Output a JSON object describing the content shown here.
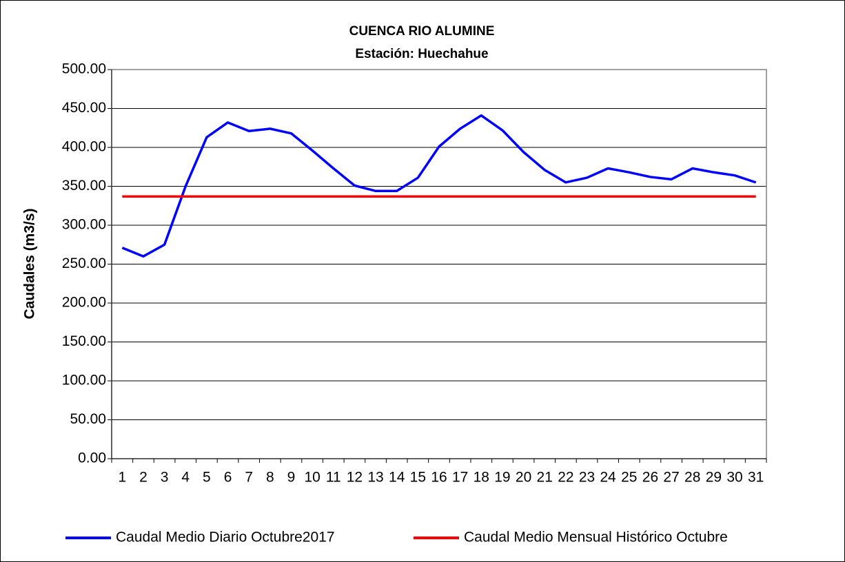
{
  "chart_data": {
    "type": "line",
    "title": "CUENCA RIO ALUMINE",
    "subtitle": "Estación: Huechahue",
    "y_label": "Caudales (m3/s)",
    "categories": [
      "1",
      "2",
      "3",
      "4",
      "5",
      "6",
      "7",
      "8",
      "9",
      "10",
      "11",
      "12",
      "13",
      "14",
      "15",
      "16",
      "17",
      "18",
      "19",
      "20",
      "21",
      "22",
      "23",
      "24",
      "25",
      "26",
      "27",
      "28",
      "29",
      "30",
      "31"
    ],
    "series": [
      {
        "name": "Caudal Medio Diario Octubre2017",
        "color": "#0000ff",
        "values": [
          271,
          260,
          275,
          350,
          413,
          432,
          421,
          424,
          418,
          396,
          373,
          351,
          344,
          344,
          361,
          401,
          424,
          441,
          422,
          394,
          371,
          355,
          361,
          373,
          368,
          362,
          359,
          373,
          368,
          364,
          355
        ]
      },
      {
        "name": "Caudal Medio Mensual Histórico Octubre",
        "color": "#ff0000",
        "values": [
          337,
          337,
          337,
          337,
          337,
          337,
          337,
          337,
          337,
          337,
          337,
          337,
          337,
          337,
          337,
          337,
          337,
          337,
          337,
          337,
          337,
          337,
          337,
          337,
          337,
          337,
          337,
          337,
          337,
          337,
          337
        ]
      }
    ],
    "ylim": [
      0,
      500
    ],
    "yticks": [
      {
        "value": 0,
        "label": "0.00"
      },
      {
        "value": 50,
        "label": "50.00"
      },
      {
        "value": 100,
        "label": "100.00"
      },
      {
        "value": 150,
        "label": "150.00"
      },
      {
        "value": 200,
        "label": "200.00"
      },
      {
        "value": 250,
        "label": "250.00"
      },
      {
        "value": 300,
        "label": "300.00"
      },
      {
        "value": 350,
        "label": "350.00"
      },
      {
        "value": 400,
        "label": "400.00"
      },
      {
        "value": 450,
        "label": "450.00"
      },
      {
        "value": 500,
        "label": "500.00"
      }
    ],
    "grid": true,
    "legend": "bottom"
  }
}
